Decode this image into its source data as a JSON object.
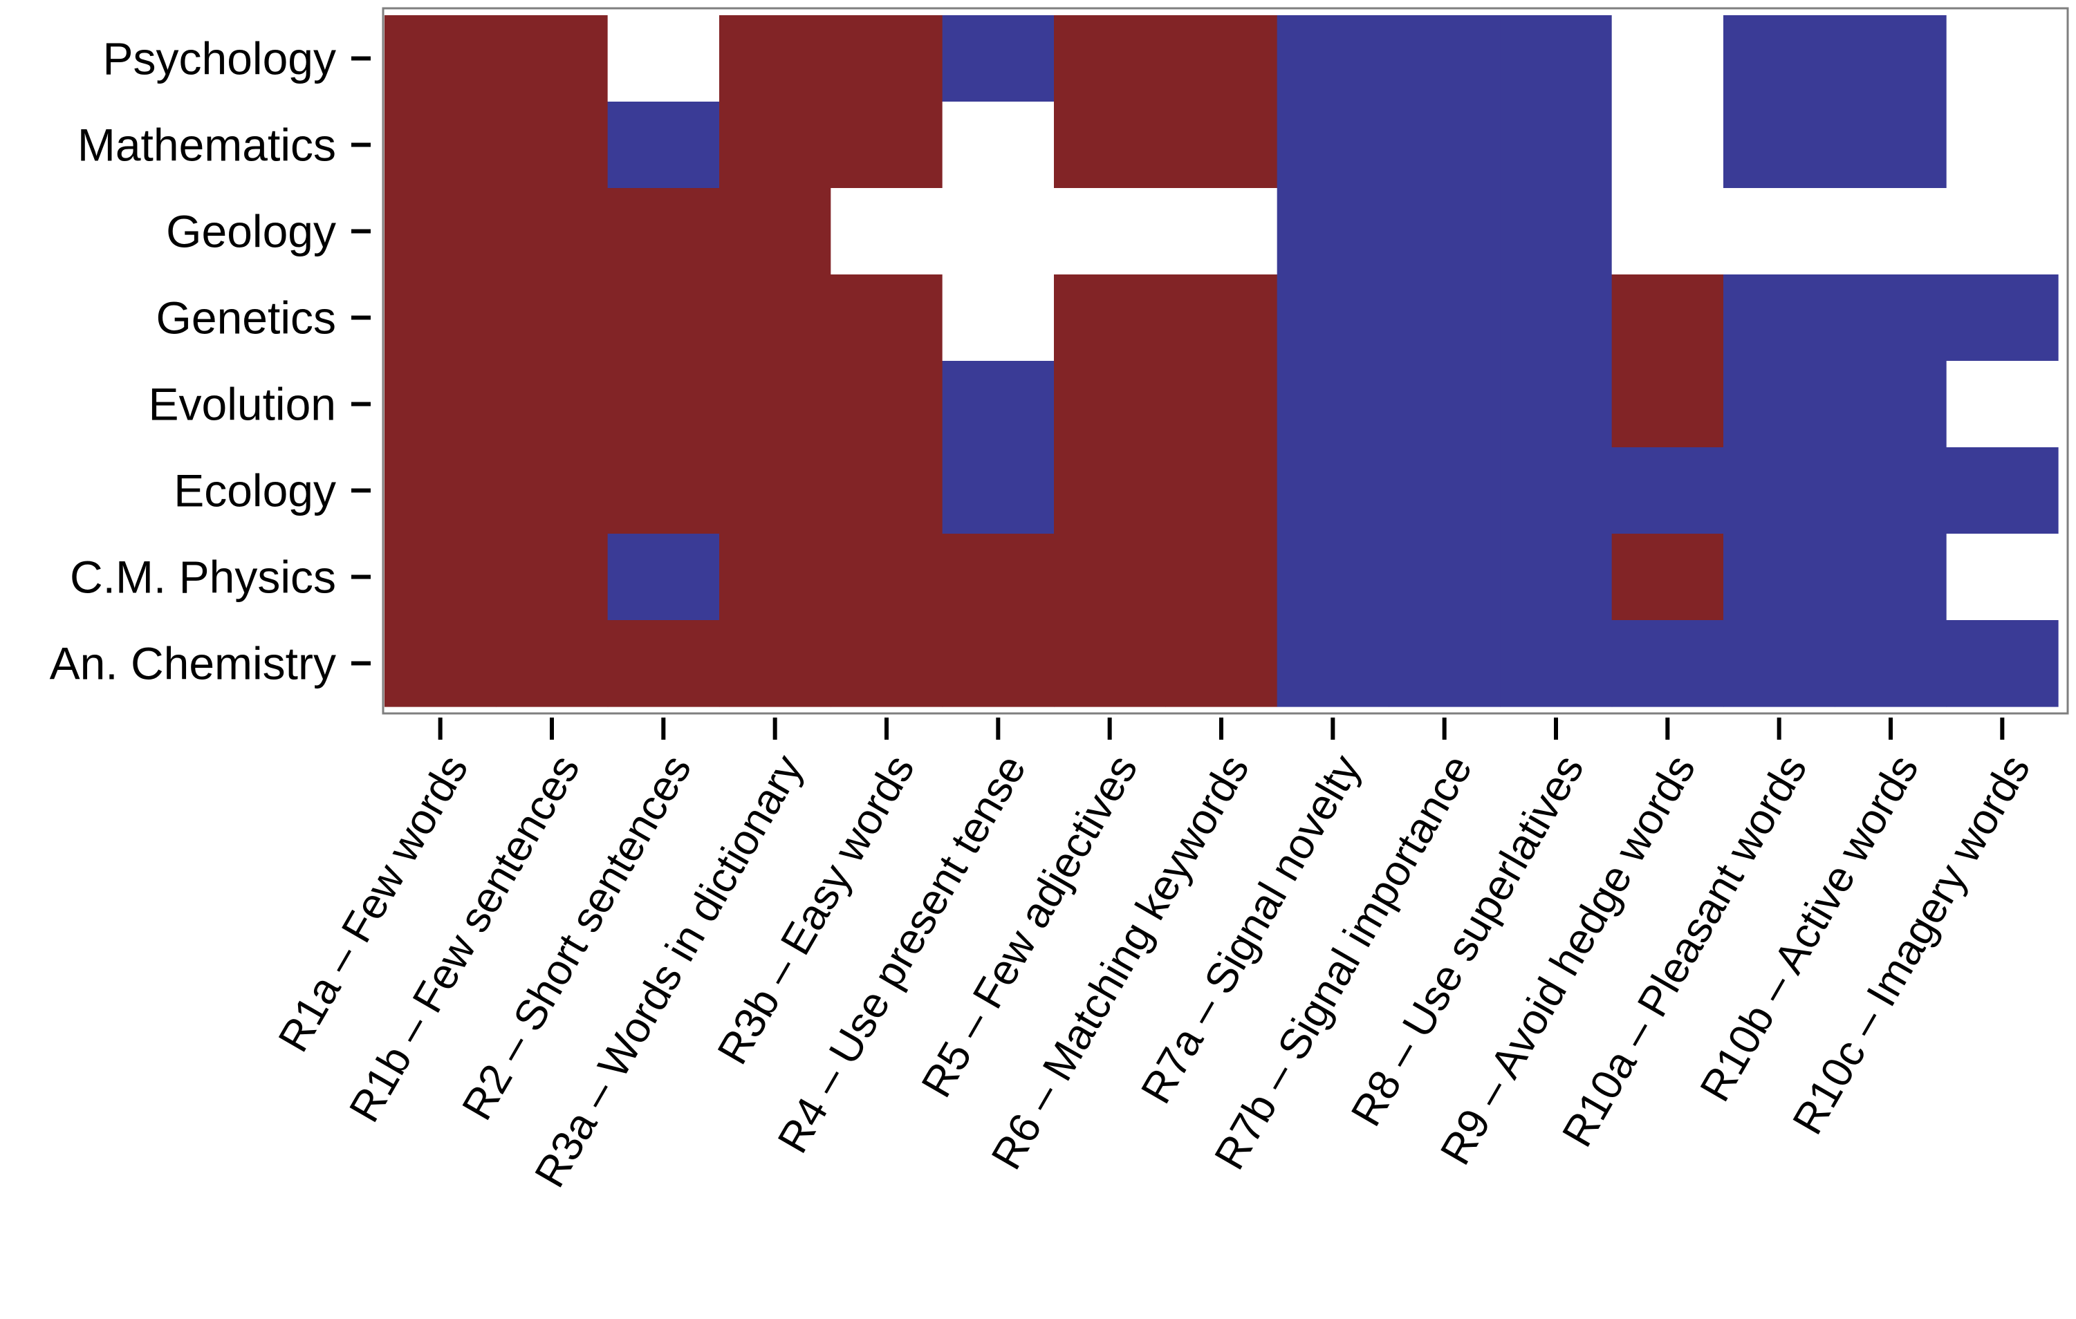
{
  "chart_data": {
    "type": "heatmap",
    "title": "",
    "xlabel": "",
    "ylabel": "",
    "x_categories": [
      "R1a – Few words",
      "R1b – Few sentences",
      "R2 – Short sentences",
      "R3a – Words in dictionary",
      "R3b –  Easy words",
      "R4 – Use present tense",
      "R5 – Few adjectives",
      "R6 – Matching keywords",
      "R7a – Signal novelty",
      "R7b – Signal importance",
      "R8 – Use superlatives",
      "R9 – Avoid hedge words",
      "R10a – Pleasant words",
      "R10b – Active words",
      "R10c – Imagery words"
    ],
    "y_categories": [
      "Psychology",
      "Mathematics",
      "Geology",
      "Genetics",
      "Evolution",
      "Ecology",
      "C.M. Physics",
      "An. Chemistry"
    ],
    "value_legend": {
      "-1": "dark red",
      "1": "blue",
      "0": "white"
    },
    "values": [
      [
        -1,
        -1,
        0,
        -1,
        -1,
        1,
        -1,
        -1,
        1,
        1,
        1,
        0,
        1,
        1,
        0
      ],
      [
        -1,
        -1,
        1,
        -1,
        -1,
        0,
        -1,
        -1,
        1,
        1,
        1,
        0,
        1,
        1,
        0
      ],
      [
        -1,
        -1,
        -1,
        -1,
        0,
        0,
        0,
        0,
        1,
        1,
        1,
        0,
        0,
        0,
        0
      ],
      [
        -1,
        -1,
        -1,
        -1,
        -1,
        0,
        -1,
        -1,
        1,
        1,
        1,
        -1,
        1,
        1,
        1
      ],
      [
        -1,
        -1,
        -1,
        -1,
        -1,
        1,
        -1,
        -1,
        1,
        1,
        1,
        -1,
        1,
        1,
        0
      ],
      [
        -1,
        -1,
        -1,
        -1,
        -1,
        1,
        -1,
        -1,
        1,
        1,
        1,
        1,
        1,
        1,
        1
      ],
      [
        -1,
        -1,
        1,
        -1,
        -1,
        -1,
        -1,
        -1,
        1,
        1,
        1,
        -1,
        1,
        1,
        0
      ],
      [
        -1,
        -1,
        -1,
        -1,
        -1,
        -1,
        -1,
        -1,
        1,
        1,
        1,
        1,
        1,
        1,
        1
      ]
    ],
    "colors": {
      "negative": "#822426",
      "positive": "#3a3b96",
      "neutral": "#ffffff",
      "panel_border": "#7f7f7f",
      "tick": "#000000"
    },
    "grid": false,
    "legend": "none"
  }
}
